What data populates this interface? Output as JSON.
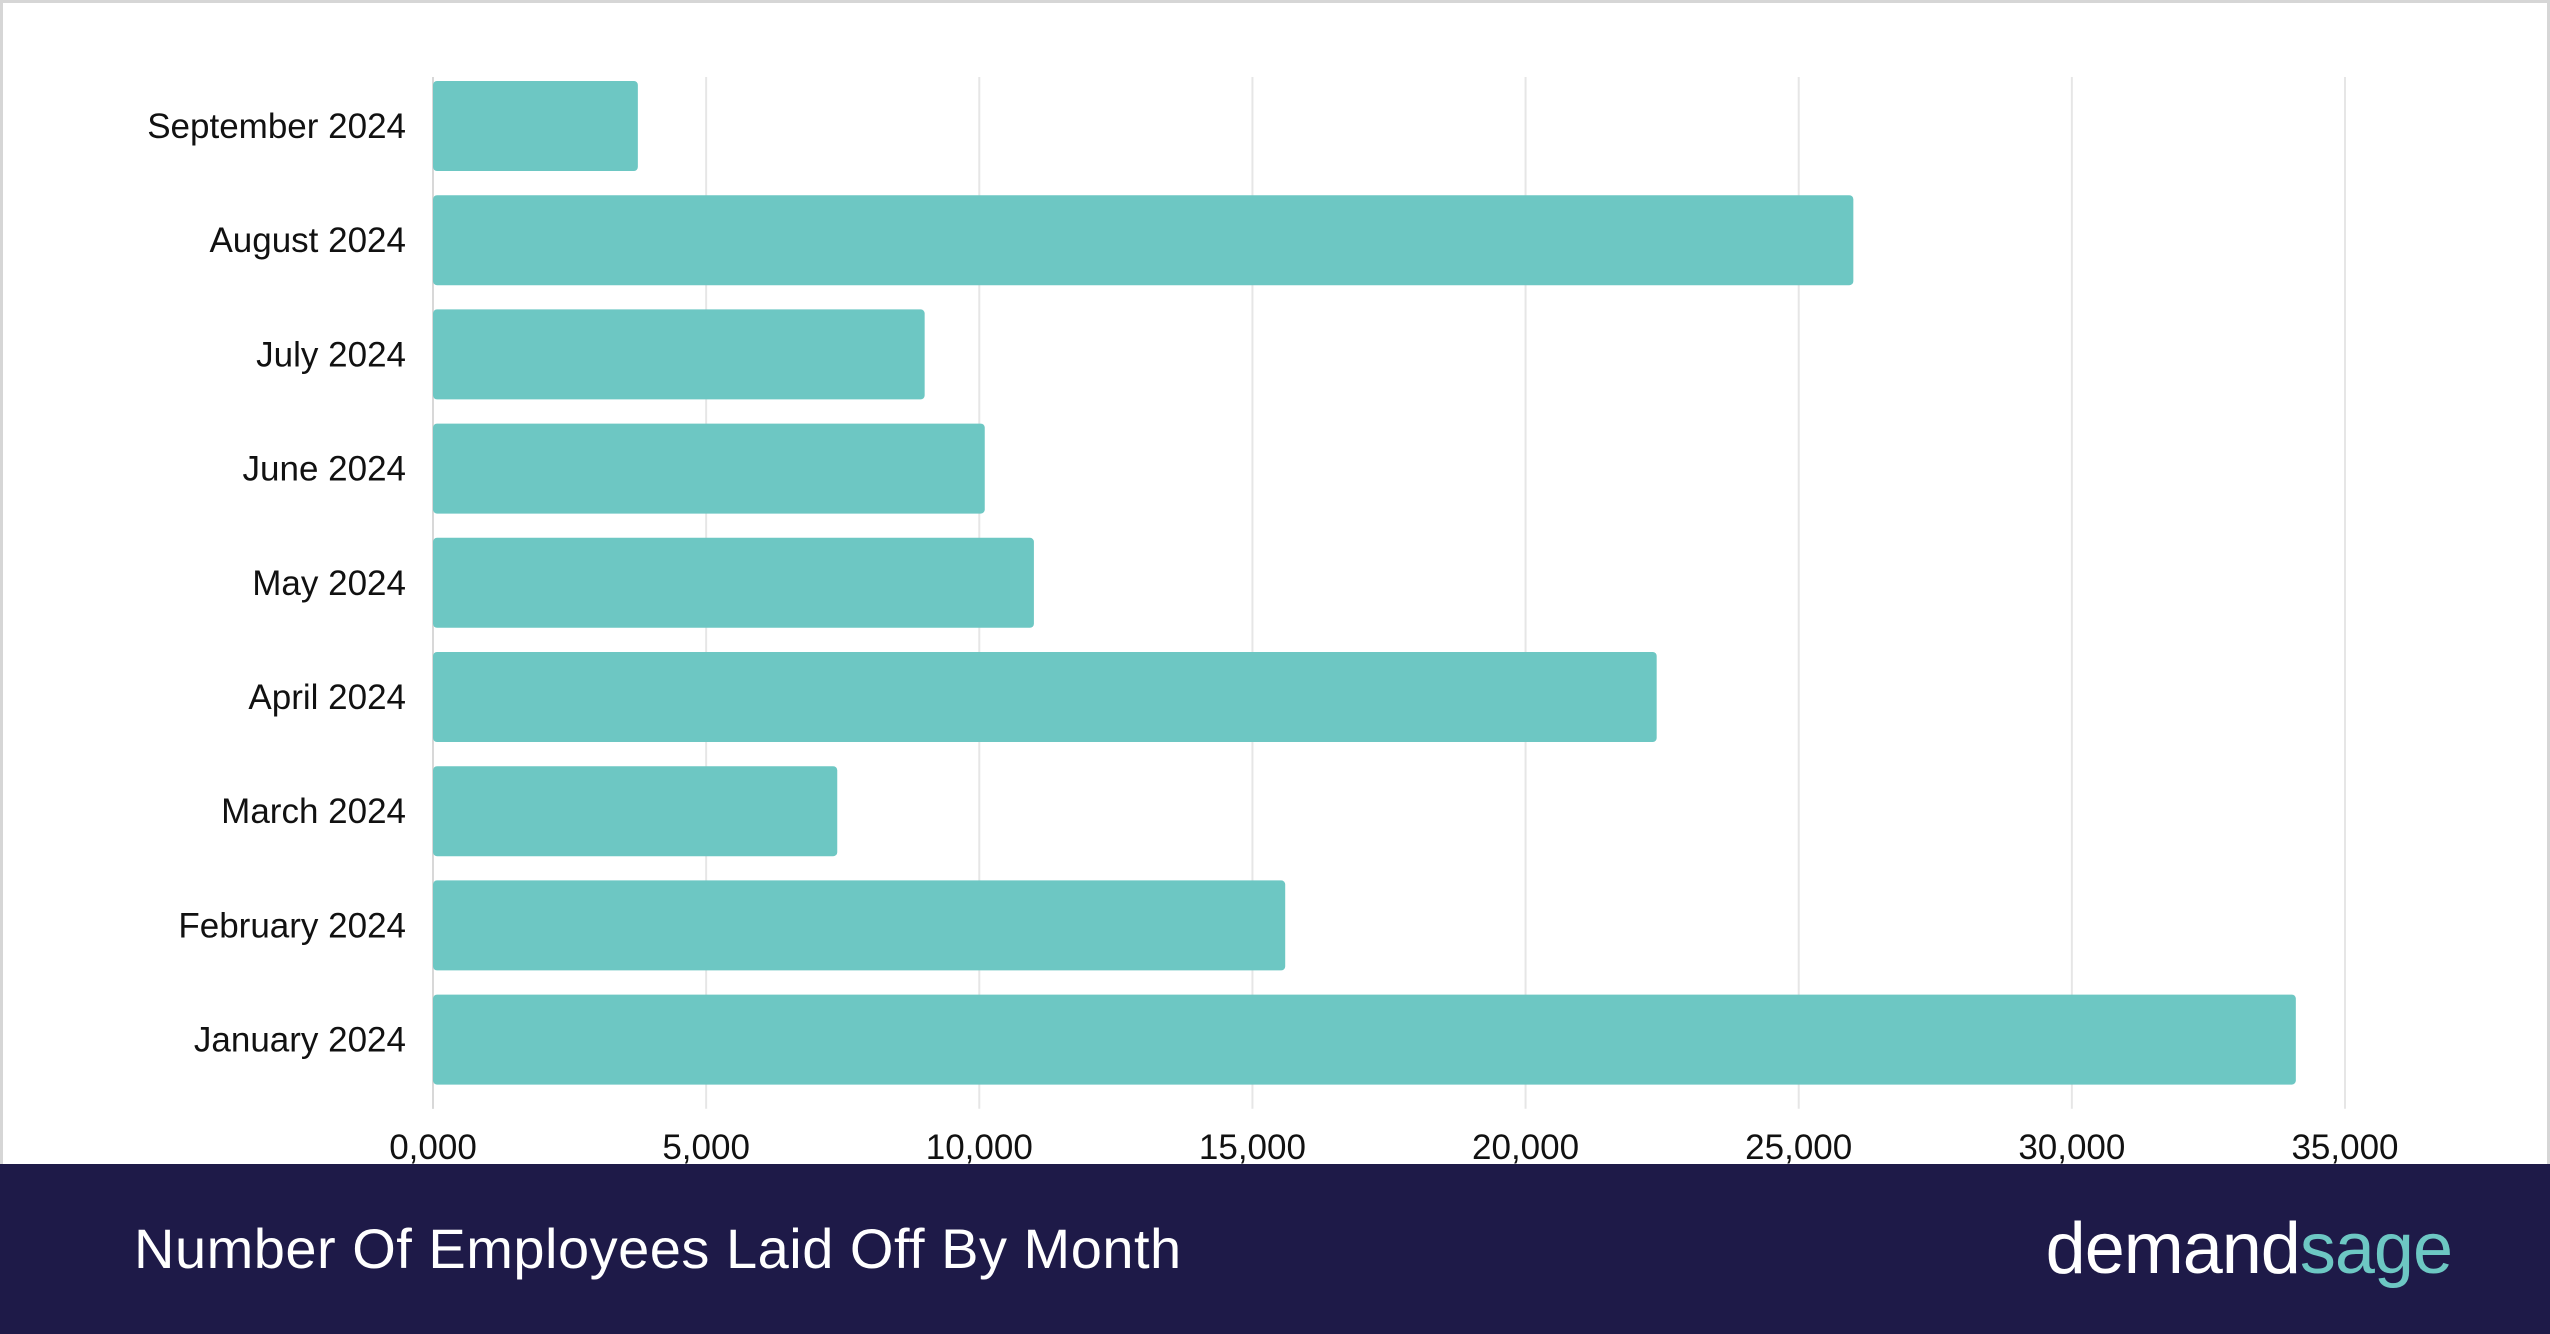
{
  "colors": {
    "bar": "#6dc7c3",
    "footer_bg": "#1e1a48",
    "gridline": "#e6e6e6",
    "text": "#111111",
    "brand_primary": "#ffffff",
    "brand_accent": "#6dc7c3"
  },
  "footer": {
    "title": "Number Of Employees Laid Off By Month",
    "brand_part1": "demand",
    "brand_part2": "sage"
  },
  "chart_data": {
    "type": "bar",
    "orientation": "horizontal",
    "categories": [
      "September 2024",
      "August 2024",
      "July 2024",
      "June 2024",
      "May 2024",
      "April 2024",
      "March 2024",
      "February 2024",
      "January 2024"
    ],
    "values": [
      3750,
      26000,
      9000,
      10100,
      11000,
      22400,
      7400,
      15600,
      34100
    ],
    "xlim": [
      0,
      35000
    ],
    "xticks": [
      0,
      5000,
      10000,
      15000,
      20000,
      25000,
      30000,
      35000
    ],
    "xtick_labels": [
      "0,000",
      "5,000",
      "10,000",
      "15,000",
      "20,000",
      "25,000",
      "30,000",
      "35,000"
    ],
    "grid": "vertical",
    "legend": "none"
  }
}
